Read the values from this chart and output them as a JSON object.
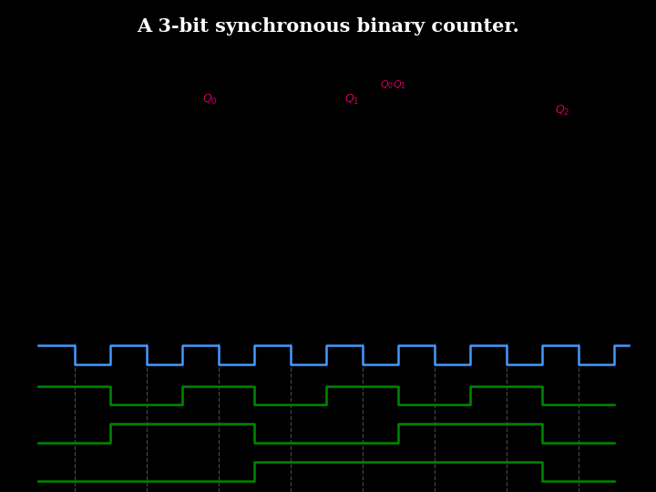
{
  "title": "A 3-bit synchronous binary counter.",
  "bg_color": "#000000",
  "circuit_bg": "#ffffff",
  "timing_bg": "#ffffff",
  "schematic_color": "#000000",
  "q_label_color": "#cc0066",
  "clk_wave_color": "#4499ff",
  "q_wave_color": "#008800",
  "dashed_color": "#555555",
  "q0_bits": [
    1,
    0,
    1,
    0,
    1,
    0,
    1,
    0
  ],
  "q1_bits": [
    0,
    1,
    1,
    0,
    0,
    1,
    1,
    0
  ],
  "q2_bits": [
    0,
    0,
    0,
    1,
    1,
    1,
    1,
    0
  ]
}
